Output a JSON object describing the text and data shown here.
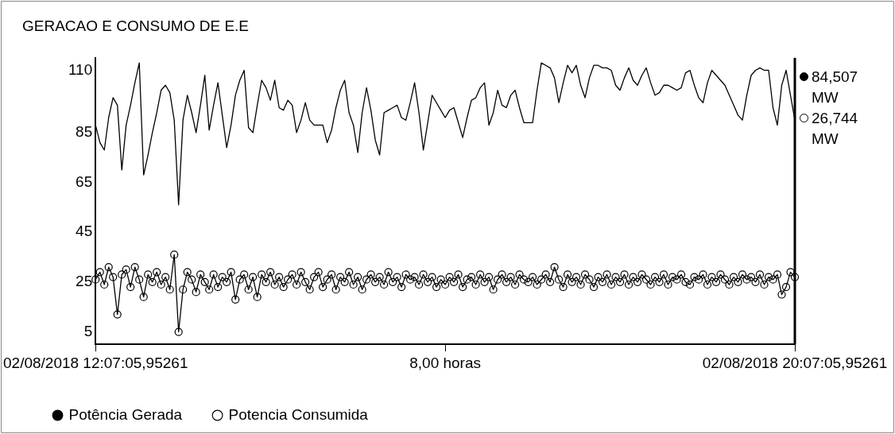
{
  "chart_data": {
    "type": "line",
    "title": "GERACAO E CONSUMO DE E.E",
    "categories": [
      "02/08/2018 12:07:05,95261",
      null,
      null,
      null,
      null,
      null,
      null,
      null,
      null,
      null,
      null,
      null,
      null,
      null,
      null,
      null,
      null,
      null,
      null,
      null,
      null,
      null,
      null,
      null,
      null,
      null,
      null,
      null,
      null,
      null,
      null,
      null,
      null,
      null,
      null,
      null,
      null,
      null,
      null,
      null,
      null,
      null,
      null,
      null,
      null,
      null,
      null,
      null,
      null,
      null,
      null,
      null,
      null,
      null,
      null,
      null,
      null,
      null,
      null,
      null,
      null,
      null,
      null,
      null,
      null,
      null,
      null,
      null,
      null,
      null,
      null,
      null,
      null,
      null,
      null,
      null,
      null,
      null,
      null,
      null,
      "8,00 horas",
      null,
      null,
      null,
      null,
      null,
      null,
      null,
      null,
      null,
      null,
      null,
      null,
      null,
      null,
      null,
      null,
      null,
      null,
      null,
      null,
      null,
      null,
      null,
      null,
      null,
      null,
      null,
      null,
      null,
      null,
      null,
      null,
      null,
      null,
      null,
      null,
      null,
      null,
      null,
      null,
      null,
      null,
      null,
      null,
      null,
      null,
      null,
      null,
      null,
      null,
      null,
      null,
      null,
      null,
      null,
      null,
      null,
      null,
      null,
      null,
      null,
      null,
      null,
      null,
      null,
      null,
      null,
      null,
      null,
      null,
      null,
      null,
      null,
      null,
      null,
      null,
      null,
      null,
      null,
      "02/08/2018 20:07:05,95261"
    ],
    "ylim": [
      0,
      115
    ],
    "yticks": [
      5,
      25,
      45,
      65,
      85,
      110
    ],
    "grid": false,
    "legend": "bottom",
    "annotations": [
      "84,507 MW",
      "26,744 MW"
    ],
    "series": [
      {
        "name": "Potência Gerada",
        "color": "#000000",
        "marker": "none",
        "values": [
          88,
          81,
          78,
          91,
          99,
          96,
          70,
          88,
          96,
          105,
          113,
          68,
          76,
          85,
          93,
          102,
          104,
          101,
          90,
          56,
          90,
          100,
          93,
          85,
          96,
          108,
          86,
          96,
          105,
          92,
          79,
          88,
          100,
          106,
          110,
          87,
          85,
          96,
          106,
          103,
          98,
          106,
          95,
          94,
          98,
          96,
          85,
          90,
          97,
          90,
          88,
          88,
          88,
          81,
          86,
          95,
          102,
          106,
          93,
          88,
          77,
          93,
          103,
          94,
          82,
          76,
          93,
          94,
          95,
          96,
          91,
          90,
          97,
          105,
          93,
          78,
          89,
          100,
          97,
          94,
          91,
          94,
          95,
          89,
          83,
          91,
          98,
          99,
          103,
          105,
          88,
          93,
          102,
          96,
          95,
          100,
          102,
          95,
          89,
          89,
          89,
          102,
          113,
          112,
          111,
          107,
          97,
          105,
          112,
          109,
          112,
          104,
          99,
          107,
          112,
          112,
          111,
          111,
          110,
          104,
          102,
          107,
          111,
          106,
          104,
          108,
          111,
          105,
          100,
          101,
          104,
          104,
          103,
          102,
          103,
          109,
          110,
          104,
          99,
          97,
          105,
          110,
          108,
          106,
          104,
          100,
          96,
          92,
          90,
          100,
          108,
          110,
          111,
          110,
          110,
          95,
          88,
          104,
          110,
          100,
          90
        ]
      },
      {
        "name": "Potencia Consumida",
        "color": "#000000",
        "marker": "circle",
        "values": [
          26,
          29,
          24,
          31,
          27,
          12,
          28,
          30,
          23,
          31,
          26,
          19,
          28,
          25,
          29,
          24,
          27,
          22,
          36,
          5,
          22,
          29,
          26,
          21,
          28,
          25,
          22,
          28,
          23,
          27,
          25,
          29,
          18,
          26,
          28,
          22,
          27,
          19,
          28,
          25,
          29,
          24,
          27,
          23,
          26,
          28,
          24,
          29,
          25,
          22,
          27,
          29,
          23,
          26,
          28,
          22,
          27,
          25,
          29,
          24,
          27,
          22,
          26,
          28,
          25,
          27,
          24,
          29,
          25,
          27,
          23,
          28,
          26,
          27,
          24,
          28,
          25,
          27,
          23,
          26,
          24,
          27,
          25,
          28,
          23,
          26,
          27,
          24,
          28,
          25,
          27,
          22,
          26,
          28,
          25,
          27,
          24,
          28,
          26,
          25,
          27,
          24,
          26,
          28,
          25,
          31,
          26,
          23,
          28,
          25,
          27,
          24,
          28,
          26,
          23,
          27,
          25,
          28,
          24,
          27,
          25,
          28,
          24,
          27,
          25,
          28,
          26,
          24,
          27,
          25,
          28,
          24,
          27,
          26,
          28,
          25,
          24,
          27,
          26,
          28,
          24,
          27,
          25,
          28,
          26,
          24,
          27,
          25,
          28,
          26,
          27,
          25,
          28,
          24,
          27,
          26,
          28,
          20,
          23,
          29,
          27
        ]
      }
    ]
  }
}
